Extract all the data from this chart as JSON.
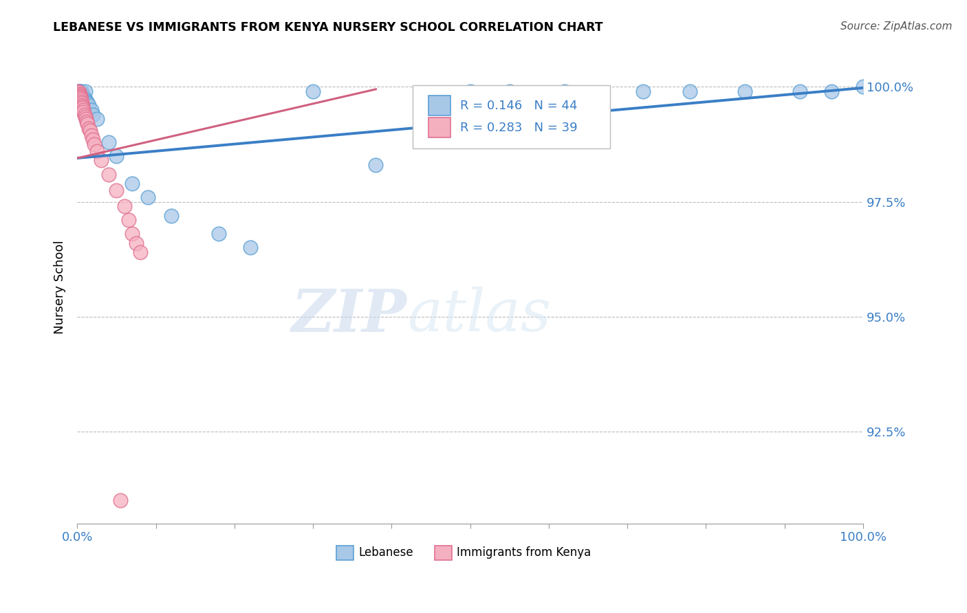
{
  "title": "LEBANESE VS IMMIGRANTS FROM KENYA NURSERY SCHOOL CORRELATION CHART",
  "source": "Source: ZipAtlas.com",
  "ylabel": "Nursery School",
  "watermark_zip": "ZIP",
  "watermark_atlas": "atlas",
  "legend_label1": "Lebanese",
  "legend_label2": "Immigrants from Kenya",
  "R1": 0.146,
  "N1": 44,
  "R2": 0.283,
  "N2": 39,
  "color_blue_fill": "#a8c8e8",
  "color_blue_edge": "#5a9fd4",
  "color_blue_line": "#3a7ec6",
  "color_pink_fill": "#f5b0c0",
  "color_pink_edge": "#e07090",
  "color_pink_line": "#d06080",
  "color_text_blue": "#3a7ec6",
  "xlim_min": 0.0,
  "xlim_max": 1.0,
  "ylim_min": 0.905,
  "ylim_max": 1.008,
  "yticks": [
    0.925,
    0.95,
    0.975,
    1.0
  ],
  "ytick_labels": [
    "92.5%",
    "95.0%",
    "97.5%",
    "100.0%"
  ],
  "blue_x": [
    0.001,
    0.001,
    0.002,
    0.002,
    0.003,
    0.003,
    0.004,
    0.004,
    0.004,
    0.005,
    0.005,
    0.006,
    0.006,
    0.007,
    0.007,
    0.008,
    0.008,
    0.009,
    0.01,
    0.01,
    0.012,
    0.013,
    0.015,
    0.018,
    0.02,
    0.025,
    0.04,
    0.05,
    0.07,
    0.09,
    0.12,
    0.18,
    0.22,
    0.3,
    0.38,
    0.5,
    0.55,
    0.62,
    0.72,
    0.78,
    0.85,
    0.92,
    0.96,
    1.0
  ],
  "blue_y": [
    0.999,
    0.9985,
    0.999,
    0.9988,
    0.999,
    0.9987,
    0.999,
    0.9988,
    0.9985,
    0.999,
    0.9985,
    0.9988,
    0.9983,
    0.9985,
    0.998,
    0.9982,
    0.9978,
    0.9975,
    0.999,
    0.9972,
    0.9968,
    0.9965,
    0.996,
    0.995,
    0.994,
    0.993,
    0.988,
    0.985,
    0.979,
    0.976,
    0.972,
    0.968,
    0.965,
    0.999,
    0.983,
    0.999,
    0.999,
    0.999,
    0.999,
    0.999,
    0.999,
    0.999,
    0.999,
    1.0
  ],
  "pink_x": [
    0.001,
    0.001,
    0.001,
    0.002,
    0.002,
    0.002,
    0.003,
    0.003,
    0.003,
    0.004,
    0.004,
    0.005,
    0.005,
    0.006,
    0.006,
    0.007,
    0.007,
    0.008,
    0.008,
    0.009,
    0.01,
    0.011,
    0.012,
    0.013,
    0.015,
    0.016,
    0.018,
    0.02,
    0.022,
    0.025,
    0.03,
    0.04,
    0.05,
    0.06,
    0.065,
    0.07,
    0.075,
    0.08,
    0.055
  ],
  "pink_y": [
    0.999,
    0.9985,
    0.9988,
    0.9988,
    0.9985,
    0.9982,
    0.9985,
    0.9982,
    0.9978,
    0.9978,
    0.9975,
    0.9972,
    0.9968,
    0.9965,
    0.996,
    0.9958,
    0.9955,
    0.995,
    0.9945,
    0.994,
    0.9935,
    0.993,
    0.9925,
    0.992,
    0.991,
    0.9905,
    0.9895,
    0.9885,
    0.9875,
    0.986,
    0.984,
    0.981,
    0.9775,
    0.974,
    0.971,
    0.968,
    0.966,
    0.964,
    0.91
  ],
  "blue_trendline": [
    0.0,
    1.0,
    0.9845,
    0.9998
  ],
  "pink_trendline": [
    0.0,
    0.38,
    0.9845,
    0.9995
  ]
}
